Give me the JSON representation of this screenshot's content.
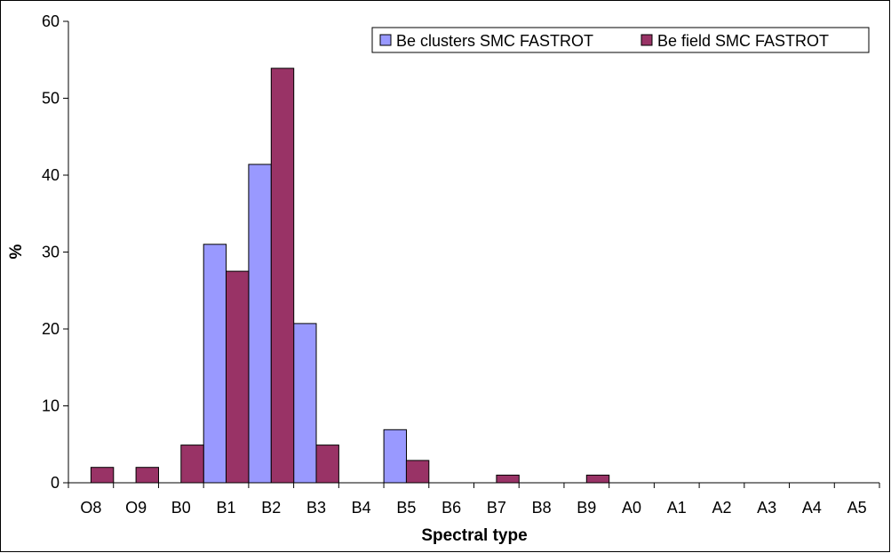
{
  "chart_data": {
    "type": "bar",
    "title": "",
    "xlabel": "Spectral type",
    "ylabel": "%",
    "ylim": [
      0,
      60
    ],
    "yticks": [
      0,
      10,
      20,
      30,
      40,
      50,
      60
    ],
    "grid": false,
    "legend_position": "top-right",
    "categories": [
      "O8",
      "O9",
      "B0",
      "B1",
      "B2",
      "B3",
      "B4",
      "B5",
      "B6",
      "B7",
      "B8",
      "B9",
      "A0",
      "A1",
      "A2",
      "A3",
      "A4",
      "A5"
    ],
    "series": [
      {
        "name": "Be clusters SMC FASTROT",
        "color": "#9999ff",
        "values": [
          0,
          0,
          0,
          31.0,
          41.4,
          20.7,
          0,
          6.9,
          0,
          0,
          0,
          0,
          0,
          0,
          0,
          0,
          0,
          0
        ]
      },
      {
        "name": "Be field SMC FASTROT",
        "color": "#993366",
        "values": [
          2.0,
          2.0,
          4.9,
          27.5,
          53.9,
          4.9,
          0,
          2.9,
          0,
          1.0,
          0,
          1.0,
          0,
          0,
          0,
          0,
          0,
          0
        ]
      }
    ]
  }
}
